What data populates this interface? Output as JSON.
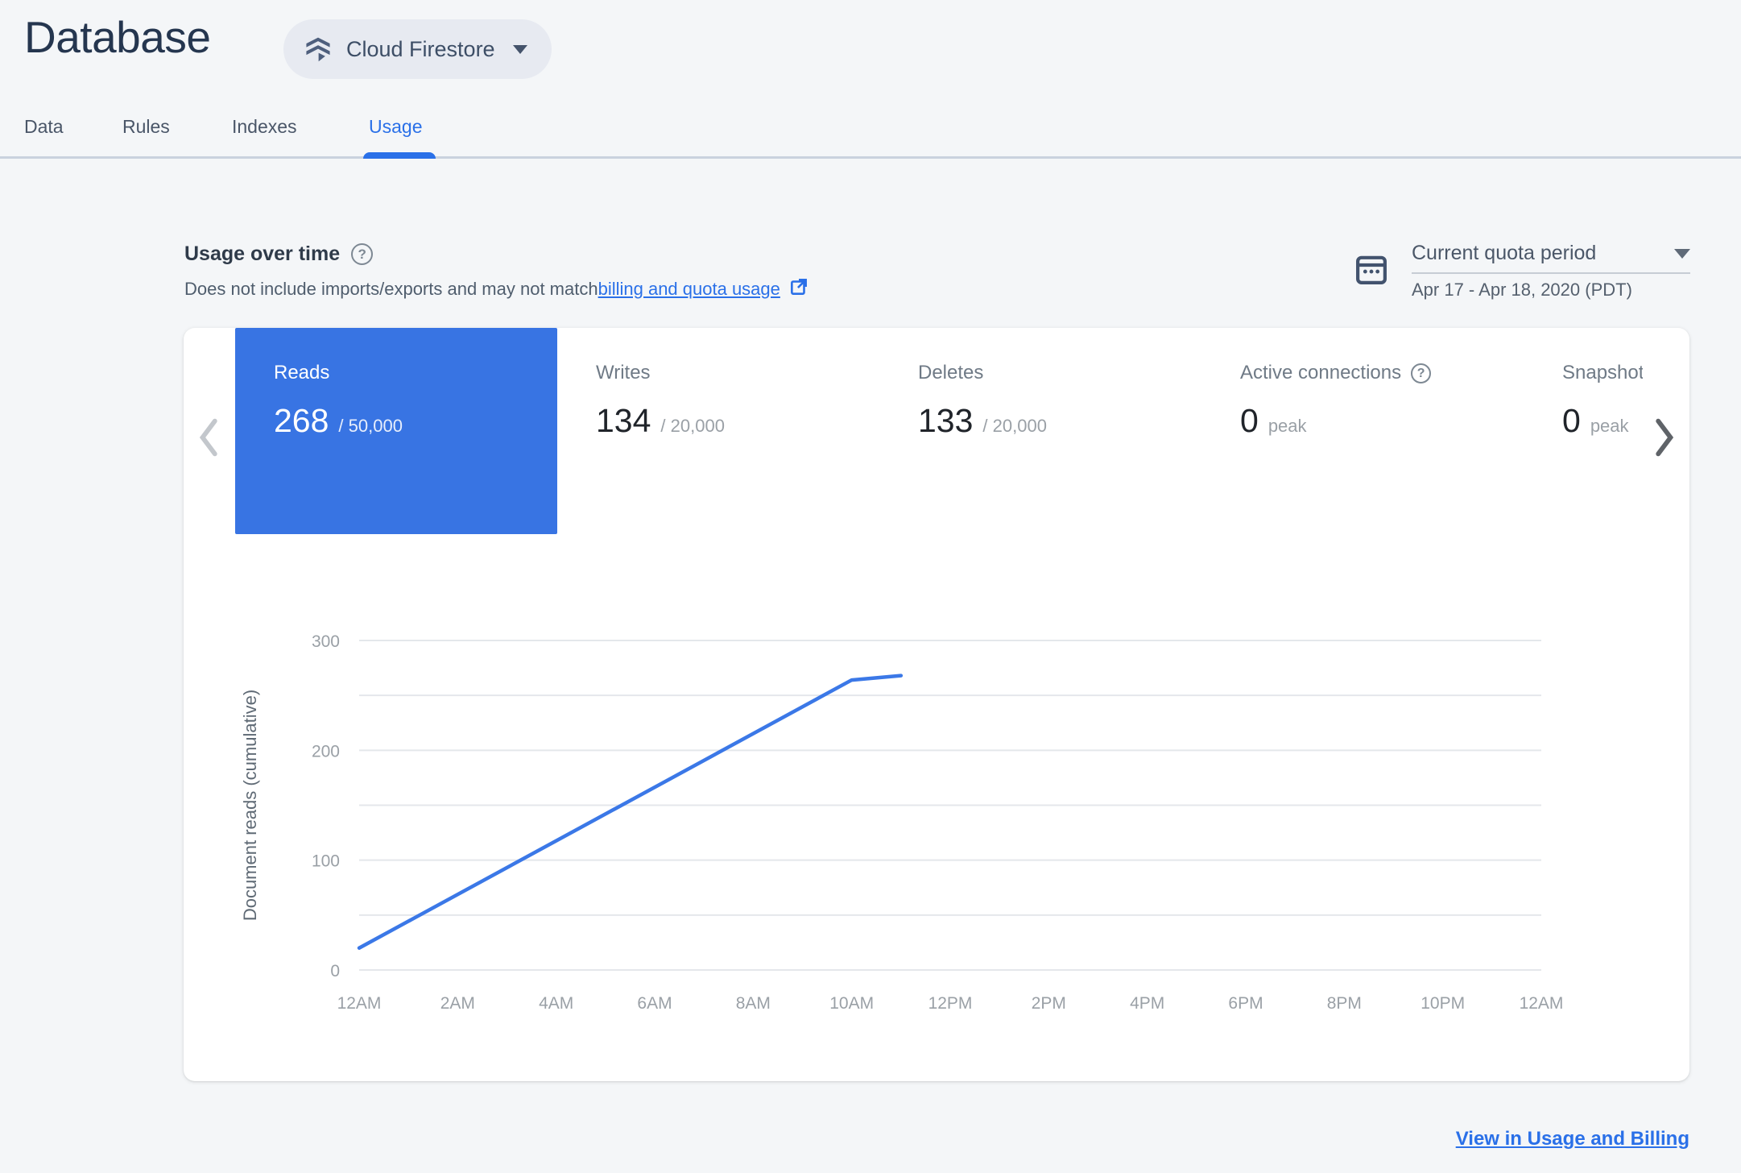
{
  "header": {
    "title": "Database",
    "product_selector": {
      "label": "Cloud Firestore"
    }
  },
  "tabs": [
    {
      "label": "Data",
      "active": false
    },
    {
      "label": "Rules",
      "active": false
    },
    {
      "label": "Indexes",
      "active": false
    },
    {
      "label": "Usage",
      "active": true
    }
  ],
  "usage_section": {
    "title": "Usage over time",
    "note_prefix": "Does not include imports/exports and may not match ",
    "note_link": "billing and quota usage",
    "period": {
      "label": "Current quota period",
      "range": "Apr 17 - Apr 18, 2020 (PDT)"
    }
  },
  "metric_cards": [
    {
      "label": "Reads",
      "value": "268",
      "suffix": "/ 50,000",
      "selected": true,
      "has_help": false
    },
    {
      "label": "Writes",
      "value": "134",
      "suffix": "/ 20,000",
      "selected": false,
      "has_help": false
    },
    {
      "label": "Deletes",
      "value": "133",
      "suffix": "/ 20,000",
      "selected": false,
      "has_help": false
    },
    {
      "label": "Active connections",
      "value": "0",
      "suffix": "peak",
      "selected": false,
      "has_help": true
    },
    {
      "label": "Snapshot listeners",
      "value": "0",
      "suffix": "peak",
      "selected": false,
      "has_help": false
    }
  ],
  "chart_data": {
    "type": "line",
    "title": "",
    "xlabel": "",
    "ylabel": "Document reads (cumulative)",
    "x_ticks": [
      "12AM",
      "2AM",
      "4AM",
      "6AM",
      "8AM",
      "10AM",
      "12PM",
      "2PM",
      "4PM",
      "6PM",
      "8PM",
      "10PM",
      "12AM"
    ],
    "xlim_hours": [
      0,
      24
    ],
    "ylim": [
      0,
      300
    ],
    "y_ticks_labeled": [
      0,
      100,
      200,
      300
    ],
    "gridline_step": 50,
    "grid": "horizontal",
    "legend": "none",
    "series": [
      {
        "name": "Document reads (cumulative)",
        "color": "#3b78e7",
        "points": [
          {
            "hour": 0,
            "value": 20
          },
          {
            "hour": 10,
            "value": 264
          },
          {
            "hour": 11,
            "value": 268
          }
        ]
      }
    ]
  },
  "footer": {
    "link_label": "View in Usage and Billing"
  },
  "icons": {
    "help_glyph": "?"
  },
  "colors": {
    "accent_blue": "#2a70e8",
    "selected_card_blue": "#3874e3",
    "line_blue": "#3b78e7",
    "page_background": "#f4f6f8",
    "panel_background": "#ffffff"
  }
}
